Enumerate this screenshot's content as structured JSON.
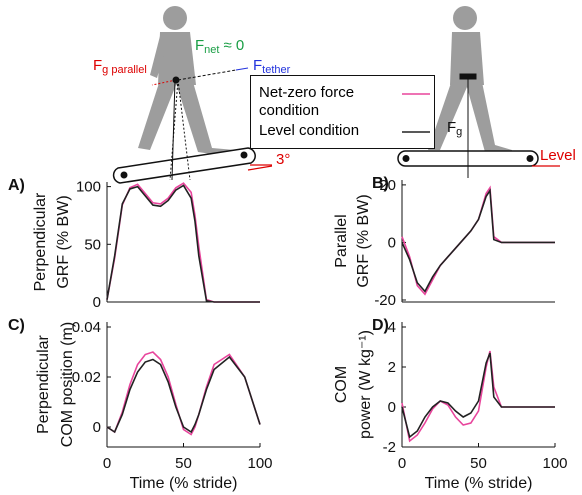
{
  "chart_data": [
    {
      "type": "line",
      "label": "A)",
      "ylabel": [
        "Perpendicular",
        "GRF (% BW)"
      ],
      "x": [
        0,
        5,
        10,
        15,
        20,
        25,
        30,
        35,
        40,
        45,
        50,
        55,
        57.5,
        60,
        65,
        70,
        80,
        90,
        100
      ],
      "xlim": [
        0,
        100
      ],
      "ylim": [
        0,
        104
      ],
      "yticks": [
        0,
        50,
        100
      ],
      "series": [
        {
          "name": "Net-zero force condition",
          "color": "#e8459c",
          "values": [
            2,
            38,
            84,
            99,
            102,
            94,
            86,
            85,
            90,
            99,
            103,
            95,
            75,
            48,
            2,
            0,
            0,
            0,
            0
          ]
        },
        {
          "name": "Level condition",
          "color": "#222222",
          "values": [
            2,
            40,
            85,
            98,
            100,
            92,
            84,
            83,
            88,
            97,
            101,
            90,
            70,
            40,
            1,
            0,
            0,
            0,
            0
          ]
        }
      ]
    },
    {
      "type": "line",
      "label": "B)",
      "ylabel": [
        "Parallel",
        "GRF (% BW)"
      ],
      "x": [
        0,
        5,
        10,
        15,
        20,
        25,
        30,
        35,
        40,
        45,
        50,
        55,
        57.5,
        60,
        65,
        70,
        80,
        90,
        100
      ],
      "xlim": [
        0,
        100
      ],
      "ylim": [
        -20.7,
        21.7
      ],
      "yticks": [
        -20,
        0,
        20
      ],
      "series": [
        {
          "color": "#e8459c",
          "values": [
            2,
            -5,
            -15,
            -18,
            -13,
            -8,
            -5,
            -2,
            1,
            4,
            8,
            17,
            19,
            2,
            0,
            0,
            0,
            0,
            0
          ]
        },
        {
          "color": "#222222",
          "values": [
            0,
            -6,
            -14,
            -17,
            -12,
            -8,
            -5,
            -2,
            1,
            4,
            8,
            16,
            18,
            1,
            0,
            0,
            0,
            0,
            0
          ]
        }
      ]
    },
    {
      "type": "line",
      "label": "C)",
      "ylabel": [
        "Perpendicular",
        "COM position (m)"
      ],
      "xlabel": "Time (% stride)",
      "x": [
        0,
        5,
        10,
        15,
        20,
        25,
        30,
        35,
        40,
        45,
        50,
        55,
        57.5,
        60,
        65,
        70,
        80,
        90,
        100
      ],
      "xlim": [
        0,
        100
      ],
      "xticks": [
        0,
        50,
        100
      ],
      "ylim": [
        -0.008,
        0.042
      ],
      "yticks": [
        0,
        0.02,
        0.04
      ],
      "series": [
        {
          "color": "#e8459c",
          "values": [
            0,
            -0.002,
            0.006,
            0.017,
            0.025,
            0.029,
            0.03,
            0.027,
            0.02,
            0.009,
            -0.001,
            -0.003,
            0,
            0.005,
            0.016,
            0.025,
            0.029,
            0.02,
            0.001
          ]
        },
        {
          "color": "#222222",
          "values": [
            0,
            -0.002,
            0.005,
            0.015,
            0.022,
            0.026,
            0.027,
            0.025,
            0.018,
            0.008,
            0,
            -0.002,
            0.001,
            0.005,
            0.015,
            0.023,
            0.028,
            0.02,
            0.001
          ]
        }
      ]
    },
    {
      "type": "line",
      "label": "D)",
      "ylabel": [
        "COM",
        "power (W kg⁻¹)"
      ],
      "xlabel": "Time (% stride)",
      "x": [
        0,
        5,
        10,
        15,
        20,
        25,
        30,
        35,
        40,
        45,
        50,
        55,
        57.5,
        60,
        65,
        70,
        80,
        90,
        100
      ],
      "xlim": [
        0,
        100
      ],
      "xticks": [
        0,
        50,
        100
      ],
      "ylim": [
        -2,
        4.25
      ],
      "yticks": [
        -2,
        0,
        2,
        4
      ],
      "series": [
        {
          "color": "#e8459c",
          "values": [
            0.2,
            -1.7,
            -1.4,
            -0.8,
            -0.1,
            0.3,
            0.1,
            -0.5,
            -0.9,
            -0.8,
            -0.2,
            2,
            2.8,
            1,
            0,
            0,
            0,
            0,
            0
          ]
        },
        {
          "color": "#222222",
          "values": [
            0,
            -1.5,
            -1.2,
            -0.5,
            0,
            0.3,
            0.2,
            -0.2,
            -0.5,
            -0.3,
            0.3,
            2.2,
            2.7,
            0.5,
            0,
            0,
            0,
            0,
            0
          ]
        }
      ]
    }
  ],
  "diagram": {
    "net_force": {
      "main": "F",
      "sub": "net",
      "rest": "≈ 0"
    },
    "gravity_parallel": {
      "main": "F",
      "sub": "g parallel"
    },
    "tether": {
      "main": "F",
      "sub": "tether"
    },
    "gravity": {
      "main": "F",
      "sub": "g"
    },
    "incline": "3°",
    "level": "Level"
  }
}
